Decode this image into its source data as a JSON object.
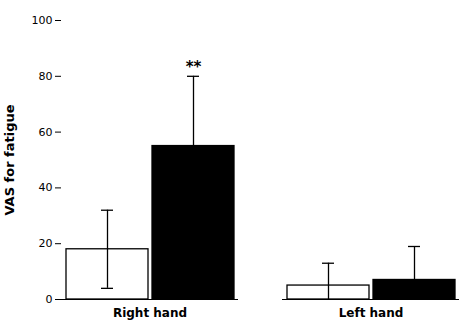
{
  "chart_data": {
    "type": "bar",
    "categories": [
      "Right hand",
      "Left hand"
    ],
    "series": [
      {
        "color": "#ffffff",
        "values": [
          18,
          5
        ],
        "errors": [
          14,
          8
        ]
      },
      {
        "color": "#000000",
        "values": [
          55,
          7
        ],
        "errors": [
          25,
          12
        ]
      }
    ],
    "ylabel": "VAS for fatigue",
    "ylim": [
      0,
      100
    ],
    "yticks": [
      0,
      20,
      40,
      60,
      80,
      100
    ],
    "grid": false,
    "annotations": [
      {
        "text": "**",
        "category": "Right hand",
        "series": 1
      }
    ]
  }
}
